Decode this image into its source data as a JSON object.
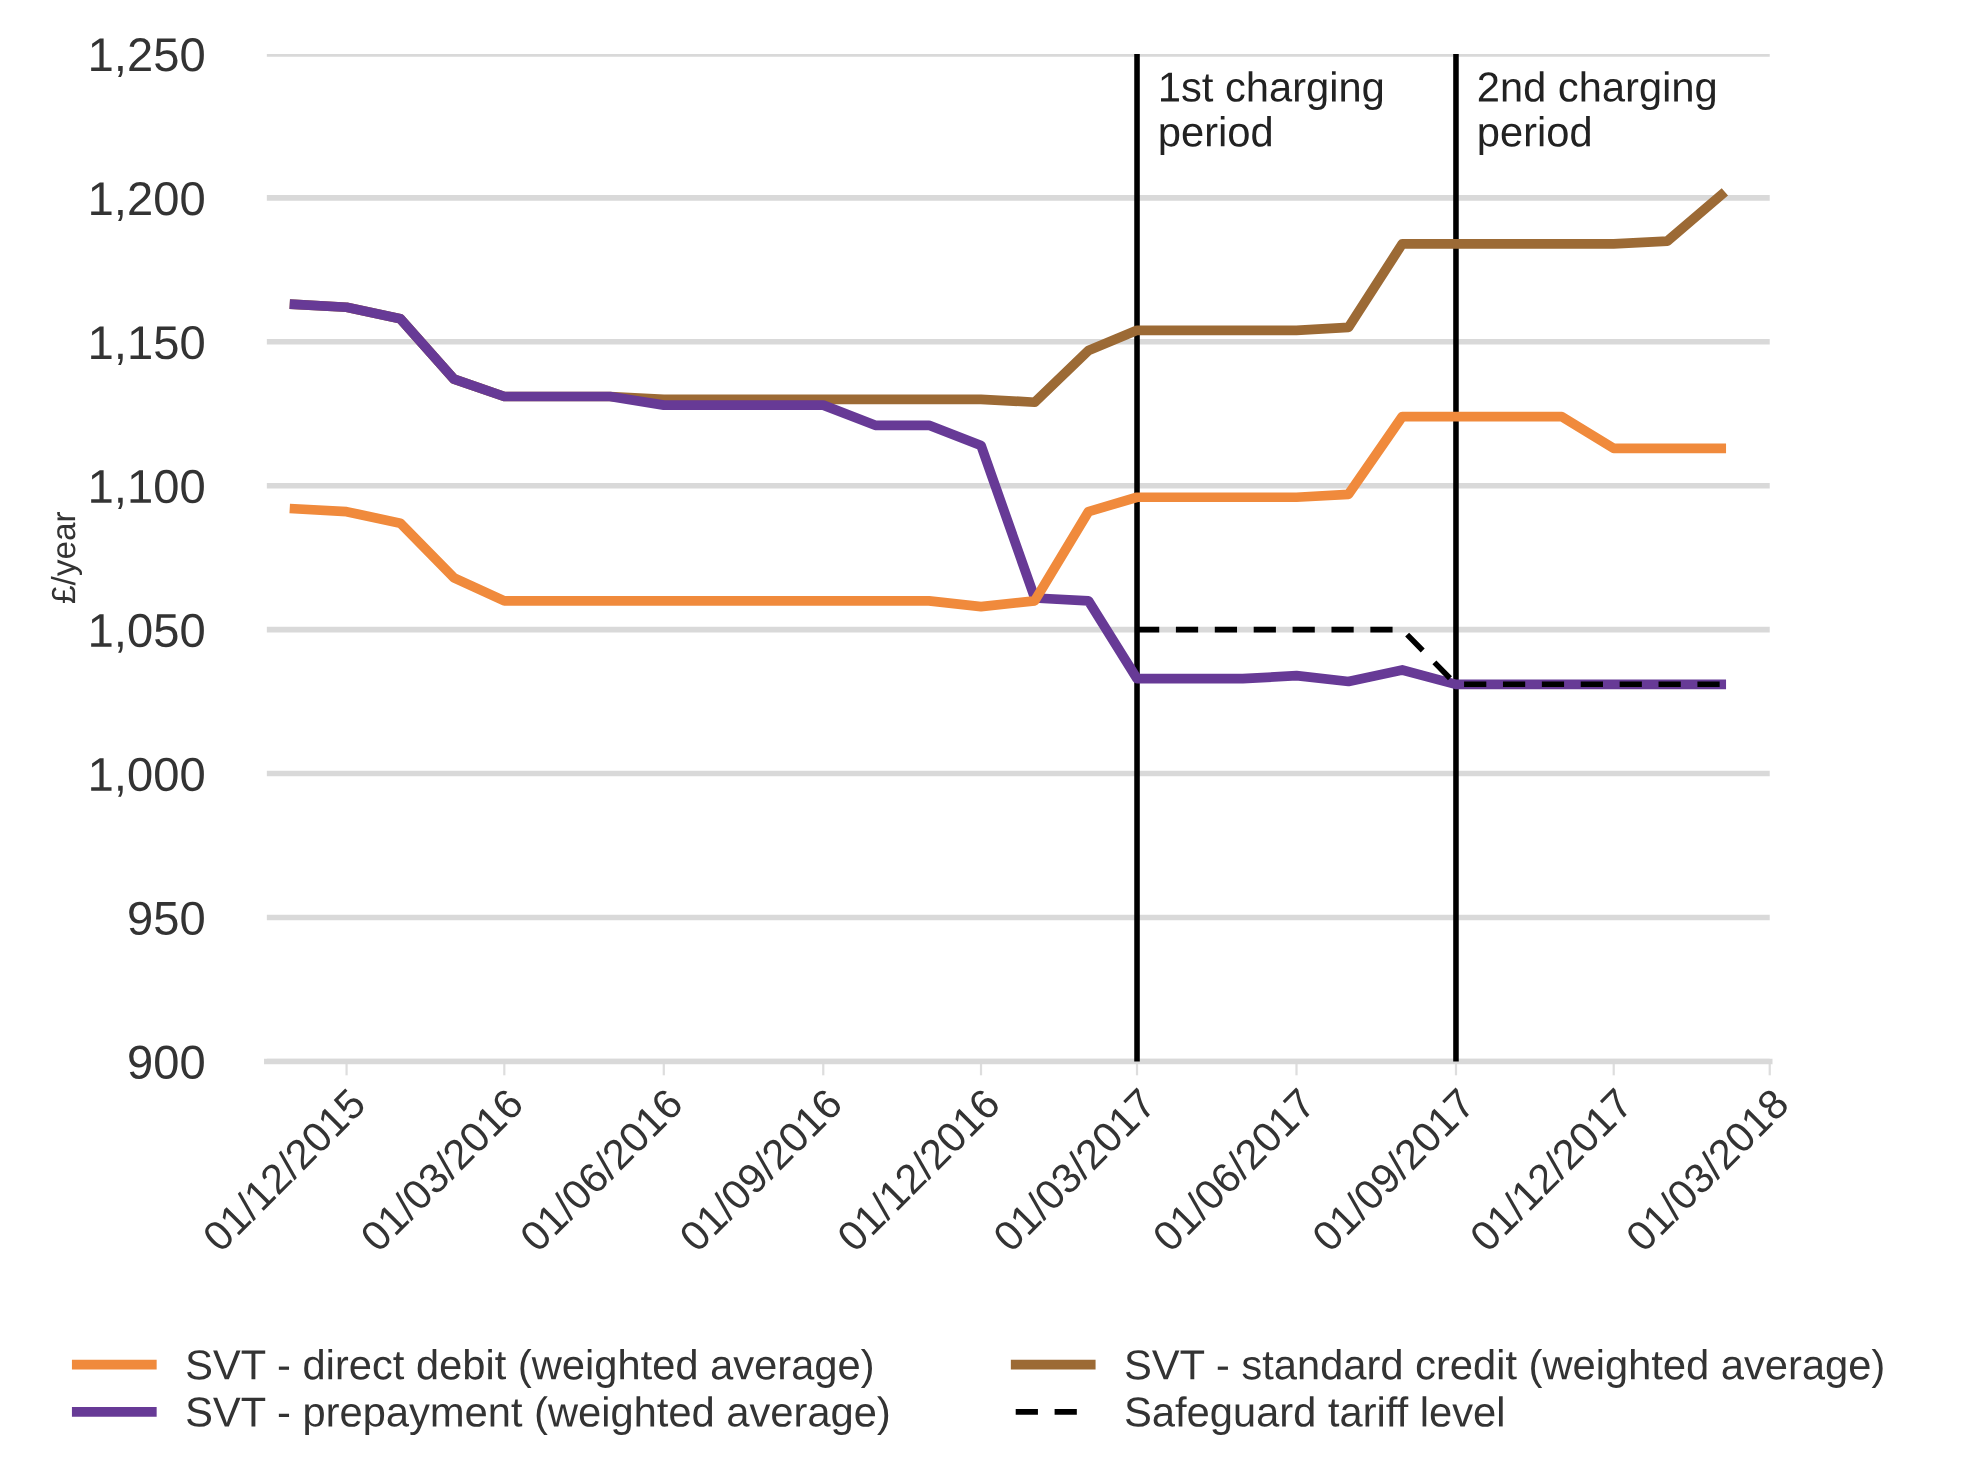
{
  "chart_data": {
    "type": "line",
    "ylabel": "£/year",
    "x": [
      "2015-11-01",
      "2015-12-01",
      "2016-01-01",
      "2016-02-01",
      "2016-03-01",
      "2016-04-01",
      "2016-05-01",
      "2016-06-01",
      "2016-07-01",
      "2016-08-01",
      "2016-09-01",
      "2016-10-01",
      "2016-11-01",
      "2016-12-01",
      "2017-01-01",
      "2017-02-01",
      "2017-03-01",
      "2017-04-01",
      "2017-05-01",
      "2017-06-01",
      "2017-07-01",
      "2017-08-01",
      "2017-09-01",
      "2017-10-01",
      "2017-11-01",
      "2017-12-01",
      "2018-01-01",
      "2018-02-01"
    ],
    "series": [
      {
        "name": "SVT - direct debit (weighted average)",
        "color": "#f08a3c",
        "values": [
          1092,
          1091,
          1087,
          1068,
          1060,
          1060,
          1060,
          1060,
          1060,
          1060,
          1060,
          1060,
          1060,
          1058,
          1060,
          1091,
          1096,
          1096,
          1096,
          1096,
          1097,
          1124,
          1124,
          1124,
          1124,
          1113,
          1113,
          1113
        ]
      },
      {
        "name": "SVT - prepayment (weighted average)",
        "color": "#673a96",
        "values": [
          1163,
          1162,
          1158,
          1137,
          1131,
          1131,
          1131,
          1128,
          1128,
          1128,
          1128,
          1121,
          1121,
          1114,
          1061,
          1060,
          1033,
          1033,
          1033,
          1034,
          1032,
          1036,
          1031,
          1031,
          1031,
          1031,
          1031,
          1031
        ]
      },
      {
        "name": "SVT - standard credit (weighted average)",
        "color": "#9c6a35",
        "values": [
          1163,
          1162,
          1158,
          1137,
          1131,
          1131,
          1131,
          1130,
          1130,
          1130,
          1130,
          1130,
          1130,
          1130,
          1129,
          1147,
          1154,
          1154,
          1154,
          1154,
          1155,
          1184,
          1184,
          1184,
          1184,
          1184,
          1185,
          1201
        ]
      },
      {
        "name": "Safeguard tariff level",
        "color": "#000000",
        "line_style": "dashed",
        "values": [
          null,
          null,
          null,
          null,
          null,
          null,
          null,
          null,
          null,
          null,
          null,
          null,
          null,
          null,
          null,
          null,
          1050,
          1050,
          1050,
          1050,
          1050,
          1050,
          1031,
          1031,
          1031,
          1031,
          1031,
          1031
        ]
      }
    ],
    "xlim": [
      "2015-10-16",
      "2018-03-01"
    ],
    "xticks": [
      {
        "value": "2015-12-01",
        "label": "01/12/2015"
      },
      {
        "value": "2016-03-01",
        "label": "01/03/2016"
      },
      {
        "value": "2016-06-01",
        "label": "01/06/2016"
      },
      {
        "value": "2016-09-01",
        "label": "01/09/2016"
      },
      {
        "value": "2016-12-01",
        "label": "01/12/2016"
      },
      {
        "value": "2017-03-01",
        "label": "01/03/2017"
      },
      {
        "value": "2017-06-01",
        "label": "01/06/2017"
      },
      {
        "value": "2017-09-01",
        "label": "01/09/2017"
      },
      {
        "value": "2017-12-01",
        "label": "01/12/2017"
      },
      {
        "value": "2018-03-01",
        "label": "01/03/2018"
      }
    ],
    "ylim": [
      900,
      1250
    ],
    "yticks": [
      {
        "value": 900,
        "label": "900"
      },
      {
        "value": 950,
        "label": "950"
      },
      {
        "value": 1000,
        "label": "1,000"
      },
      {
        "value": 1050,
        "label": "1,050"
      },
      {
        "value": 1100,
        "label": "1,100"
      },
      {
        "value": 1150,
        "label": "1,150"
      },
      {
        "value": 1200,
        "label": "1,200"
      },
      {
        "value": 1250,
        "label": "1,250"
      }
    ],
    "ref_lines": [
      {
        "axis": "x",
        "value": "2017-03-01",
        "label": "1st charging period",
        "color": "#000000"
      },
      {
        "axis": "x",
        "value": "2017-09-01",
        "label": "2nd charging period",
        "color": "#000000"
      }
    ],
    "grid": "y",
    "legend": "bottom",
    "marker": "none",
    "line_style": "solid"
  }
}
